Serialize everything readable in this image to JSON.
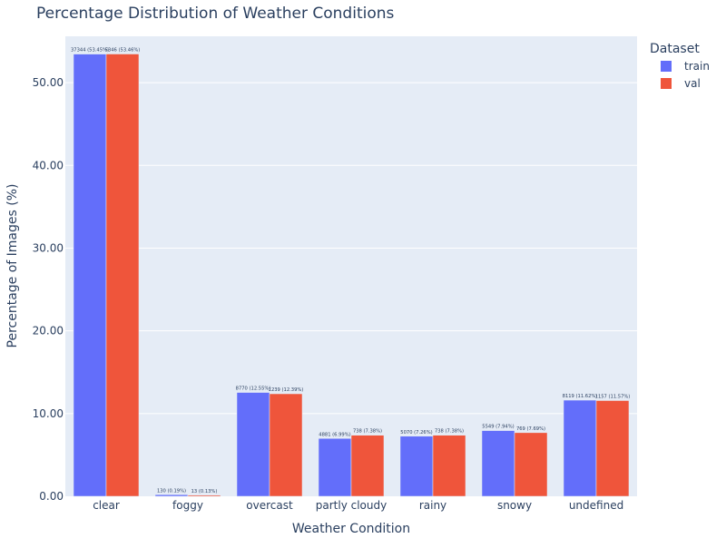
{
  "chart_data": {
    "type": "bar",
    "title": "Percentage Distribution of Weather Conditions",
    "xlabel": "Weather Condition",
    "ylabel": "Percentage of Images (%)",
    "ylim": [
      0,
      55.6
    ],
    "yticks": [
      "0.00",
      "10.00",
      "20.00",
      "30.00",
      "40.00",
      "50.00"
    ],
    "ytick_values": [
      0,
      10,
      20,
      30,
      40,
      50
    ],
    "grid": true,
    "legend_title": "Dataset",
    "legend_position": "top-right",
    "categories": [
      "clear",
      "foggy",
      "overcast",
      "partly cloudy",
      "rainy",
      "snowy",
      "undefined"
    ],
    "series": [
      {
        "name": "train",
        "color": "#636efa",
        "values": [
          53.45,
          0.19,
          12.55,
          6.99,
          7.26,
          7.94,
          11.62
        ],
        "labels": [
          "37344 (53.45%)",
          "130 (0.19%)",
          "8770 (12.55%)",
          "4881 (6.99%)",
          "5070 (7.26%)",
          "5549 (7.94%)",
          "8119 (11.62%)"
        ]
      },
      {
        "name": "val",
        "color": "#ef553b",
        "values": [
          53.46,
          0.13,
          12.39,
          7.38,
          7.38,
          7.69,
          11.57
        ],
        "labels": [
          "5346 (53.46%)",
          "13 (0.13%)",
          "1239 (12.39%)",
          "738 (7.38%)",
          "738 (7.38%)",
          "769 (7.69%)",
          "1157 (11.57%)"
        ]
      }
    ]
  }
}
